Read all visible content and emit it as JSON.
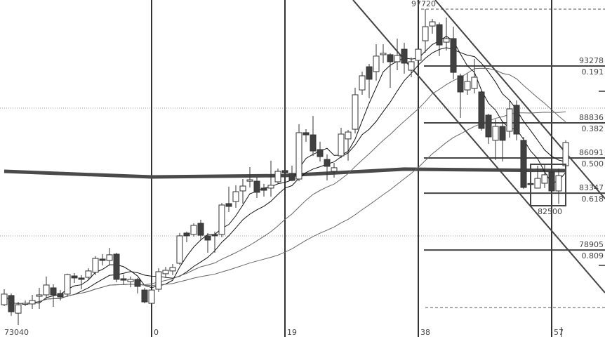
{
  "chart_data": {
    "type": "candlestick",
    "title": "",
    "xlabel": "",
    "ylabel": "",
    "x_tick_labels": [
      {
        "index": 21,
        "label": "0"
      },
      {
        "index": 40,
        "label": "19"
      },
      {
        "index": 59,
        "label": "38"
      },
      {
        "index": 78,
        "label": "57"
      }
    ],
    "low_label": "73040",
    "high_label": "97720",
    "box_label": "82500",
    "fib_levels": [
      {
        "price": 93278,
        "price_label": "93278",
        "ratio": "0.191"
      },
      {
        "price": 88836,
        "price_label": "88836",
        "ratio": "0.382"
      },
      {
        "price": 86091,
        "price_label": "86091",
        "ratio": "0.500"
      },
      {
        "price": 83347,
        "price_label": "83347",
        "ratio": "0.618"
      },
      {
        "price": 78905,
        "price_label": "78905",
        "ratio": "0.809"
      }
    ],
    "ohlc": [
      [
        74630,
        75840,
        74520,
        75460
      ],
      [
        75350,
        75510,
        73760,
        74080
      ],
      [
        73970,
        74850,
        73040,
        74630
      ],
      [
        74690,
        74960,
        74520,
        74740
      ],
      [
        74690,
        75400,
        74300,
        74960
      ],
      [
        75290,
        75950,
        74300,
        75400
      ],
      [
        75400,
        76830,
        75130,
        76170
      ],
      [
        75950,
        76220,
        74470,
        75400
      ],
      [
        75510,
        75780,
        74960,
        75240
      ],
      [
        75460,
        77050,
        75240,
        76990
      ],
      [
        76880,
        77100,
        76330,
        76720
      ],
      [
        76720,
        76940,
        75840,
        76610
      ],
      [
        76770,
        77480,
        76610,
        77270
      ],
      [
        77160,
        78420,
        76940,
        78250
      ],
      [
        78200,
        78580,
        77700,
        78090
      ],
      [
        78090,
        79070,
        77700,
        78530
      ],
      [
        78580,
        78690,
        76390,
        76610
      ],
      [
        76660,
        76990,
        76220,
        76550
      ],
      [
        76440,
        76830,
        76000,
        76610
      ],
      [
        76610,
        76720,
        75510,
        76060
      ],
      [
        75780,
        75950,
        74740,
        74850
      ],
      [
        74740,
        75950,
        74630,
        75780
      ],
      [
        75840,
        77480,
        75620,
        77210
      ],
      [
        77050,
        77590,
        76770,
        77320
      ],
      [
        77270,
        77810,
        76940,
        77540
      ],
      [
        77870,
        80230,
        77760,
        80010
      ],
      [
        80230,
        80340,
        79510,
        80010
      ],
      [
        80120,
        80990,
        79950,
        80830
      ],
      [
        80990,
        81270,
        79730,
        80060
      ],
      [
        80010,
        80230,
        78690,
        79680
      ],
      [
        80120,
        80340,
        78690,
        80010
      ],
      [
        80120,
        82580,
        79900,
        82420
      ],
      [
        82530,
        83850,
        81870,
        82310
      ],
      [
        82690,
        83960,
        82200,
        83460
      ],
      [
        83520,
        84450,
        82530,
        83900
      ],
      [
        84280,
        85380,
        83790,
        84390
      ],
      [
        84280,
        84610,
        82970,
        83410
      ],
      [
        83740,
        84070,
        83080,
        83570
      ],
      [
        83740,
        85880,
        83080,
        83960
      ],
      [
        84230,
        85270,
        84070,
        85050
      ],
      [
        85110,
        85330,
        84280,
        84940
      ],
      [
        84890,
        85490,
        84280,
        84340
      ],
      [
        84450,
        88730,
        84280,
        88070
      ],
      [
        88070,
        88340,
        87360,
        87900
      ],
      [
        87900,
        89380,
        86260,
        86640
      ],
      [
        86750,
        87360,
        85820,
        86200
      ],
      [
        85980,
        86370,
        84340,
        85440
      ],
      [
        85050,
        85710,
        84560,
        85330
      ],
      [
        86260,
        88450,
        86090,
        87960
      ],
      [
        87580,
        88290,
        85880,
        88120
      ],
      [
        88340,
        91580,
        88010,
        91030
      ],
      [
        91410,
        92840,
        91030,
        92510
      ],
      [
        93220,
        93440,
        90760,
        92240
      ],
      [
        92840,
        94980,
        92130,
        94050
      ],
      [
        94160,
        94980,
        93500,
        94270
      ],
      [
        94160,
        94270,
        91580,
        93610
      ],
      [
        93610,
        95420,
        92950,
        94100
      ],
      [
        94590,
        95090,
        92680,
        93500
      ],
      [
        92950,
        93940,
        92400,
        93610
      ],
      [
        93720,
        94870,
        92950,
        94590
      ],
      [
        95250,
        97720,
        94320,
        96350
      ],
      [
        96400,
        96950,
        95800,
        96730
      ],
      [
        96510,
        96680,
        94050,
        94920
      ],
      [
        95140,
        97060,
        94490,
        95420
      ],
      [
        95420,
        96350,
        92240,
        92780
      ],
      [
        92510,
        92680,
        89220,
        91250
      ],
      [
        91410,
        92680,
        91030,
        92070
      ],
      [
        91520,
        93830,
        91140,
        92400
      ],
      [
        91250,
        91410,
        88230,
        88400
      ],
      [
        89440,
        89550,
        87190,
        87740
      ],
      [
        87470,
        89110,
        85930,
        88560
      ],
      [
        88560,
        89000,
        85820,
        87470
      ],
      [
        88180,
        90540,
        87680,
        89930
      ],
      [
        90210,
        90590,
        87470,
        87960
      ],
      [
        87470,
        87740,
        83680,
        83790
      ],
      [
        84100,
        84180,
        83960,
        84040
      ],
      [
        83740,
        85490,
        83740,
        84500
      ],
      [
        84120,
        85550,
        83740,
        84780
      ],
      [
        85000,
        85270,
        83460,
        83520
      ],
      [
        83520,
        85270,
        82500,
        84720
      ],
      [
        85490,
        87470,
        85270,
        87300
      ]
    ],
    "thick_ma_points": [
      [
        0,
        85050
      ],
      [
        21,
        84610
      ],
      [
        40,
        84720
      ],
      [
        57,
        85220
      ],
      [
        80,
        85110
      ]
    ],
    "ma_periods": [
      5,
      10,
      20,
      40
    ],
    "colors": {
      "up_fill": "#ffffff",
      "down_fill": "#404040",
      "outline": "#333333",
      "ma": "#111111",
      "long_ma": "#666666",
      "thick_ma": "#4a4a4a",
      "grid": "#999999"
    },
    "grid": "dotted horizontal",
    "legend": "none"
  }
}
